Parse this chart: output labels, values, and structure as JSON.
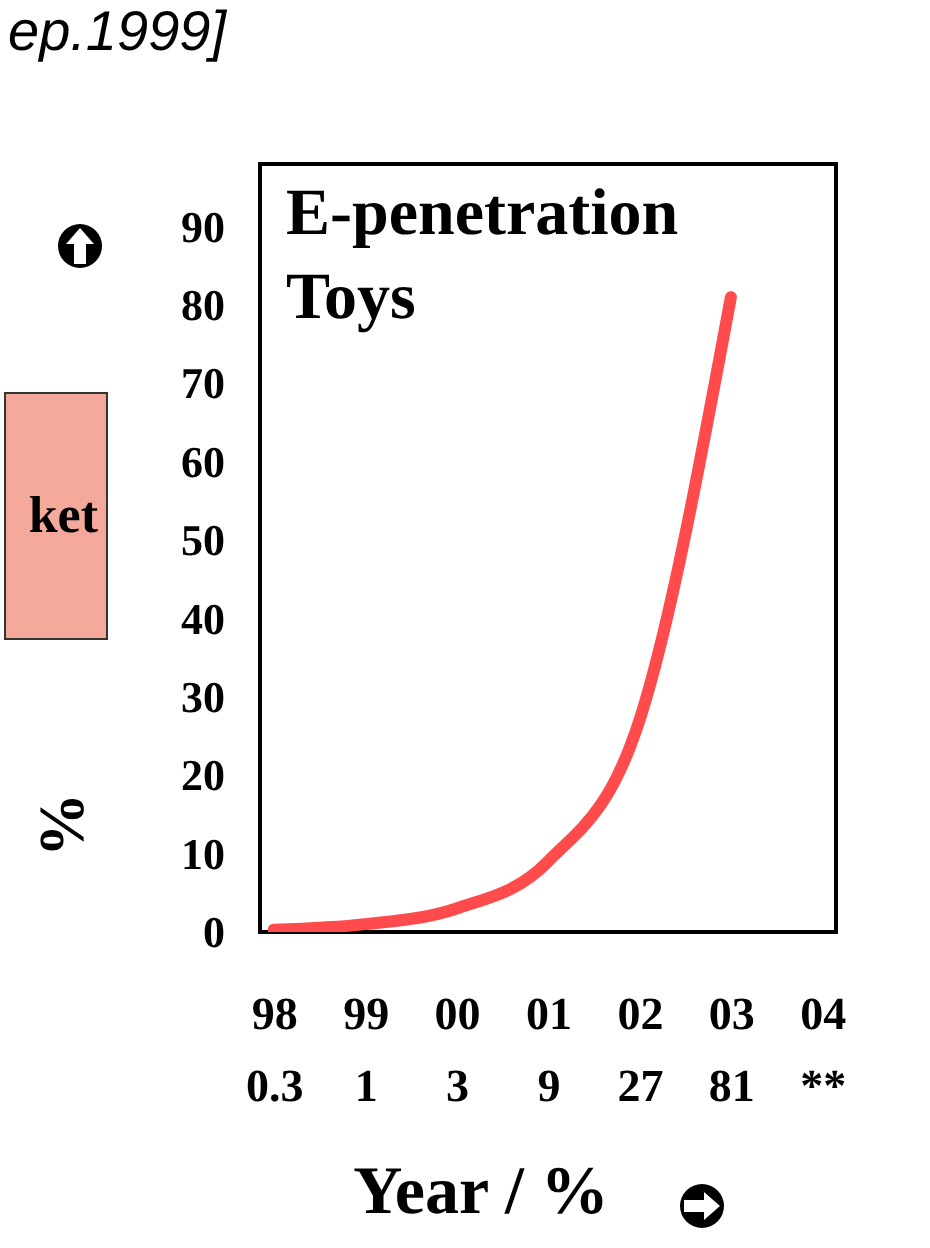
{
  "chart_data": {
    "type": "line",
    "title": "E-penetration Toys",
    "ylabel": "%",
    "xlabel": "Year / %",
    "categories": [
      "98",
      "99",
      "00",
      "01",
      "02",
      "03",
      "04"
    ],
    "series": [
      {
        "color": "#ff4b4b",
        "values": [
          0.3,
          1,
          3,
          9,
          27,
          81,
          null
        ],
        "value_labels": [
          "0.3",
          "1",
          "3",
          "9",
          "27",
          "81",
          "**"
        ]
      }
    ],
    "ylim": [
      0,
      98
    ],
    "yticks": [
      0,
      10,
      20,
      30,
      40,
      50,
      60,
      70,
      80,
      90
    ],
    "grid": false,
    "annotations": [
      "ep.1999]",
      "ket"
    ]
  }
}
